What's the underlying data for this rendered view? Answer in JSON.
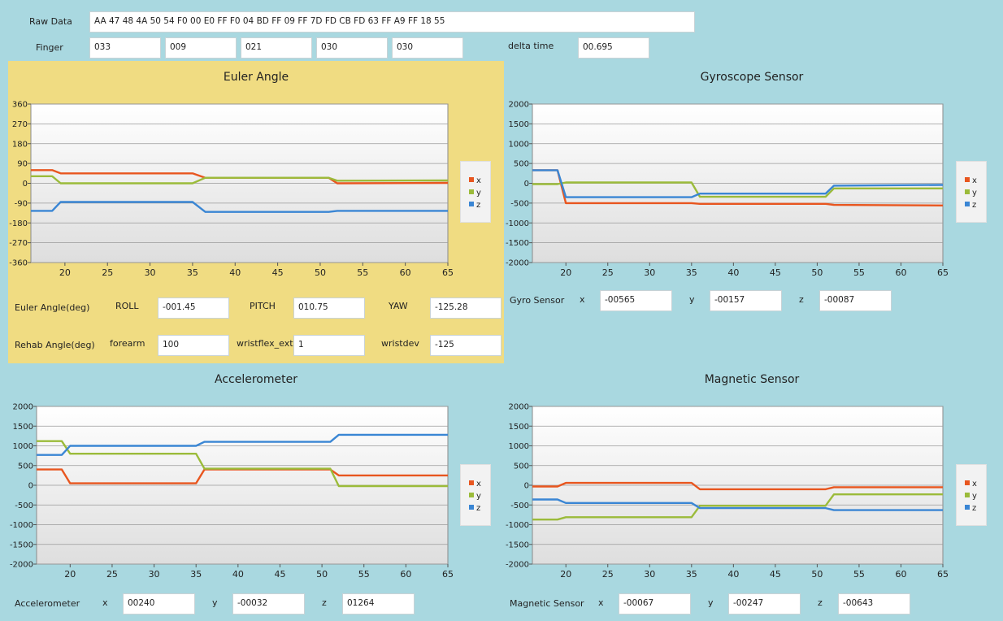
{
  "raw": {
    "label": "Raw Data",
    "value": "AA 47 48 4A 50 54 F0 00 E0 FF F0 04 BD FF 09 FF 7D FD CB FD 63 FF A9 FF 18 55"
  },
  "finger": {
    "label": "Finger",
    "values": [
      "033",
      "009",
      "021",
      "030",
      "030"
    ]
  },
  "delta": {
    "label": "delta time",
    "value": "00.695"
  },
  "euler": {
    "title": "Euler Angle",
    "row1": {
      "label": "Euler Angle(deg)",
      "roll_label": "ROLL",
      "roll": "-001.45",
      "pitch_label": "PITCH",
      "pitch": "010.75",
      "yaw_label": "YAW",
      "yaw": "-125.28"
    },
    "row2": {
      "label": "Rehab Angle(deg)",
      "forearm_label": "forearm",
      "forearm": "100",
      "wristflex_label": "wristflex_ext",
      "wristflex": "1",
      "wristdev_label": "wristdev",
      "wristdev": "-125"
    }
  },
  "gyro": {
    "title": "Gyroscope Sensor",
    "label": "Gyro Sensor",
    "x_label": "x",
    "x": "-00565",
    "y_label": "y",
    "y": "-00157",
    "z_label": "z",
    "z": "-00087"
  },
  "accel": {
    "title": "Accelerometer",
    "label": "Accelerometer",
    "x_label": "x",
    "x": "00240",
    "y_label": "y",
    "y": "-00032",
    "z_label": "z",
    "z": "01264"
  },
  "mag": {
    "title": "Magnetic Sensor",
    "label": "Magnetic Sensor",
    "x_label": "x",
    "x": "-00067",
    "y_label": "y",
    "y": "-00247",
    "z_label": "z",
    "z": "-00643"
  },
  "colors": {
    "x": "#e8561f",
    "y": "#9bbb3a",
    "z": "#3a86d4",
    "euler_panel": "#f0dc82",
    "background": "#a9d8e0"
  },
  "chart_data": [
    {
      "id": "euler",
      "type": "line",
      "title": "Euler Angle",
      "xlim": [
        16,
        65
      ],
      "ylim": [
        -360,
        360
      ],
      "xticks": [
        20,
        25,
        30,
        35,
        40,
        45,
        50,
        55,
        60,
        65
      ],
      "yticks": [
        360,
        270,
        180,
        90,
        0,
        -90,
        -180,
        -270,
        -360
      ],
      "legend": [
        "x",
        "y",
        "z"
      ],
      "legend_position": "right",
      "series": [
        {
          "name": "x",
          "x": [
            16,
            18.5,
            19.5,
            35,
            36.5,
            51,
            52,
            65
          ],
          "y": [
            60,
            60,
            45,
            45,
            25,
            25,
            0,
            2
          ]
        },
        {
          "name": "y",
          "x": [
            16,
            18.5,
            19.5,
            35,
            36.5,
            51,
            52,
            65
          ],
          "y": [
            32,
            32,
            0,
            0,
            25,
            25,
            12,
            13
          ]
        },
        {
          "name": "z",
          "x": [
            16,
            18.5,
            19.5,
            35,
            36.5,
            51,
            52,
            65
          ],
          "y": [
            -125,
            -125,
            -85,
            -85,
            -130,
            -130,
            -125,
            -125
          ]
        }
      ]
    },
    {
      "id": "gyro",
      "type": "line",
      "title": "Gyroscope Sensor",
      "xlim": [
        16,
        65
      ],
      "ylim": [
        -2000,
        2000
      ],
      "xticks": [
        20,
        25,
        30,
        35,
        40,
        45,
        50,
        55,
        60,
        65
      ],
      "yticks": [
        2000,
        1500,
        1000,
        500,
        0,
        -500,
        -1000,
        -1500,
        -2000
      ],
      "legend": [
        "x",
        "y",
        "z"
      ],
      "legend_position": "right",
      "series": [
        {
          "name": "x",
          "x": [
            16,
            19,
            20,
            35,
            36,
            51,
            52,
            65
          ],
          "y": [
            330,
            330,
            -500,
            -500,
            -520,
            -520,
            -545,
            -560
          ]
        },
        {
          "name": "y",
          "x": [
            16,
            19,
            20,
            35,
            36,
            51,
            52,
            65
          ],
          "y": [
            -20,
            -20,
            20,
            20,
            -340,
            -340,
            -130,
            -130
          ]
        },
        {
          "name": "z",
          "x": [
            16,
            19,
            20,
            35,
            36,
            51,
            52,
            65
          ],
          "y": [
            330,
            330,
            -350,
            -350,
            -260,
            -260,
            -60,
            -40
          ]
        }
      ]
    },
    {
      "id": "accel",
      "type": "line",
      "title": "Accelerometer",
      "xlim": [
        16,
        65
      ],
      "ylim": [
        -2000,
        2000
      ],
      "xticks": [
        20,
        25,
        30,
        35,
        40,
        45,
        50,
        55,
        60,
        65
      ],
      "yticks": [
        2000,
        1500,
        1000,
        500,
        0,
        -500,
        -1000,
        -1500,
        -2000
      ],
      "legend": [
        "x",
        "y",
        "z"
      ],
      "legend_position": "right",
      "series": [
        {
          "name": "x",
          "x": [
            16,
            19,
            20,
            35,
            36,
            51,
            52,
            65
          ],
          "y": [
            400,
            400,
            50,
            50,
            400,
            400,
            250,
            250
          ]
        },
        {
          "name": "y",
          "x": [
            16,
            19,
            20,
            35,
            36,
            51,
            52,
            65
          ],
          "y": [
            1120,
            1120,
            800,
            800,
            420,
            420,
            -20,
            -20
          ]
        },
        {
          "name": "z",
          "x": [
            16,
            19,
            20,
            35,
            36,
            51,
            52,
            65
          ],
          "y": [
            770,
            770,
            1000,
            1000,
            1100,
            1100,
            1280,
            1280
          ]
        }
      ]
    },
    {
      "id": "mag",
      "type": "line",
      "title": "Magnetic Sensor",
      "xlim": [
        16,
        65
      ],
      "ylim": [
        -2000,
        2000
      ],
      "xticks": [
        20,
        25,
        30,
        35,
        40,
        45,
        50,
        55,
        60,
        65
      ],
      "yticks": [
        2000,
        1500,
        1000,
        500,
        0,
        -500,
        -1000,
        -1500,
        -2000
      ],
      "legend": [
        "x",
        "y",
        "z"
      ],
      "legend_position": "right",
      "series": [
        {
          "name": "x",
          "x": [
            16,
            19,
            20,
            35,
            36,
            51,
            52,
            65
          ],
          "y": [
            -30,
            -30,
            60,
            60,
            -100,
            -100,
            -50,
            -50
          ]
        },
        {
          "name": "y",
          "x": [
            16,
            19,
            20,
            35,
            36,
            51,
            52,
            65
          ],
          "y": [
            -870,
            -870,
            -810,
            -810,
            -520,
            -520,
            -230,
            -230
          ]
        },
        {
          "name": "z",
          "x": [
            16,
            19,
            20,
            35,
            36,
            51,
            52,
            65
          ],
          "y": [
            -360,
            -360,
            -450,
            -450,
            -580,
            -580,
            -630,
            -630
          ]
        }
      ]
    }
  ]
}
